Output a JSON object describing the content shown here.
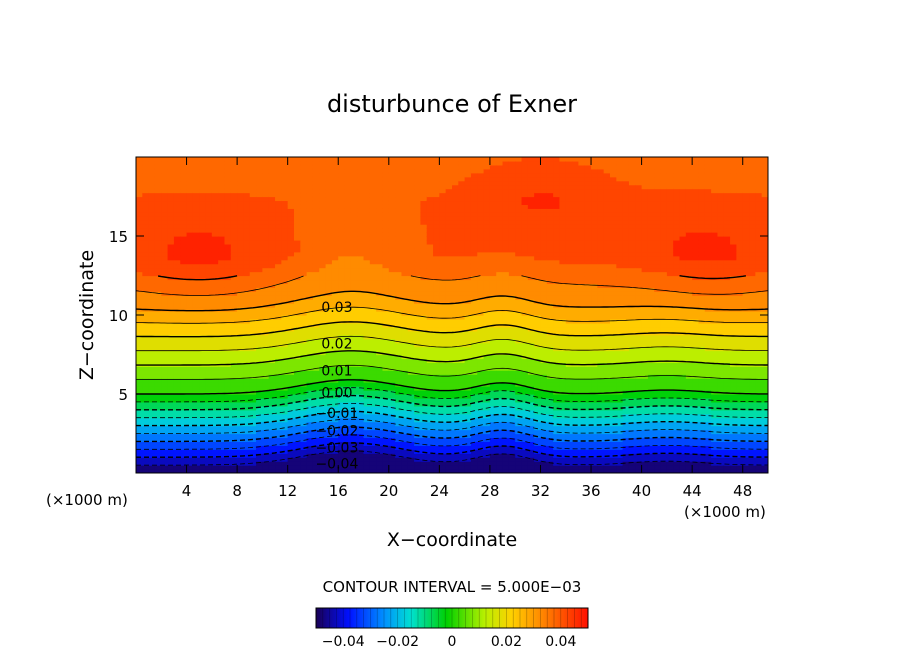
{
  "chart_data": {
    "type": "contour",
    "title": "disturbunce of Exner",
    "xlabel": "X−coordinate",
    "ylabel": "Z−coordinate",
    "x_unit": "(×1000 m)",
    "xlim": [
      0,
      50
    ],
    "ylim": [
      0,
      20
    ],
    "x_ticks": [
      "4",
      "8",
      "12",
      "16",
      "20",
      "24",
      "28",
      "32",
      "36",
      "40",
      "44",
      "48"
    ],
    "y_ticks": [
      "5",
      "10",
      "15"
    ],
    "contour_interval_text": "CONTOUR INTERVAL = 5.000E−03",
    "contour_interval": 0.005,
    "colorbar": {
      "range": [
        -0.05,
        0.05
      ],
      "ticks": [
        "−0.04",
        "−0.02",
        "0",
        "0.02",
        "0.04"
      ],
      "colormap": "rainbow (blue → cyan → green → yellow → orange → red)"
    },
    "contour_labels": [
      {
        "text": "0.03",
        "x": 15.5,
        "z": 10.5
      },
      {
        "text": "0.02",
        "x": 15.5,
        "z": 8.2
      },
      {
        "text": "0.01",
        "x": 15.5,
        "z": 6.5
      },
      {
        "text": "0.00",
        "x": 15.5,
        "z": 5.1
      },
      {
        "text": "−0.01",
        "x": 15.5,
        "z": 3.8
      },
      {
        "text": "−0.02",
        "x": 15.5,
        "z": 2.7
      },
      {
        "text": "−0.03",
        "x": 15.5,
        "z": 1.6
      },
      {
        "text": "−0.04",
        "x": 15.5,
        "z": 0.6
      }
    ],
    "field_profile": {
      "description_levels": [
        {
          "z": 0.0,
          "value": -0.05
        },
        {
          "z": 5.0,
          "value": 0.0
        },
        {
          "z": 10.5,
          "value": 0.03
        },
        {
          "z": 14.0,
          "value": 0.04
        },
        {
          "z": 20.0,
          "value": 0.035
        }
      ]
    }
  }
}
